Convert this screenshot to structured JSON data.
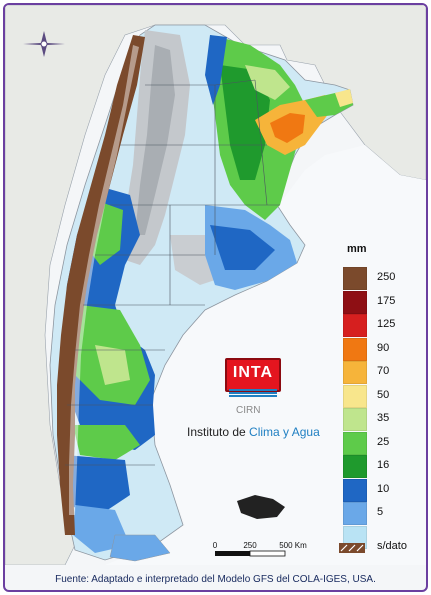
{
  "legend": {
    "title": "mm",
    "items": [
      {
        "label": "250",
        "color": "#7b4a2c"
      },
      {
        "label": "175",
        "color": "#8e0f14"
      },
      {
        "label": "125",
        "color": "#d61f1f"
      },
      {
        "label": "90",
        "color": "#f07812"
      },
      {
        "label": "70",
        "color": "#f6b43a"
      },
      {
        "label": "50",
        "color": "#f8e68c"
      },
      {
        "label": "35",
        "color": "#bfe58d"
      },
      {
        "label": "25",
        "color": "#5ecb4a"
      },
      {
        "label": "16",
        "color": "#1f9a2d"
      },
      {
        "label": "10",
        "color": "#1f67c4"
      },
      {
        "label": "5",
        "color": "#6aa8e8"
      },
      {
        "label": "",
        "color": "#b9e3f4"
      }
    ],
    "nodata_label": "s/dato"
  },
  "logo": {
    "text": "INTA",
    "cirn": "CIRN",
    "institute_prefix": "Instituto de ",
    "institute_accent": "Clima y Agua"
  },
  "scale": {
    "labels": [
      "0",
      "250",
      "500 Km"
    ]
  },
  "source": "Fuente: Adaptado e interpretado del Modelo GFS del COLA-IGES, USA."
}
